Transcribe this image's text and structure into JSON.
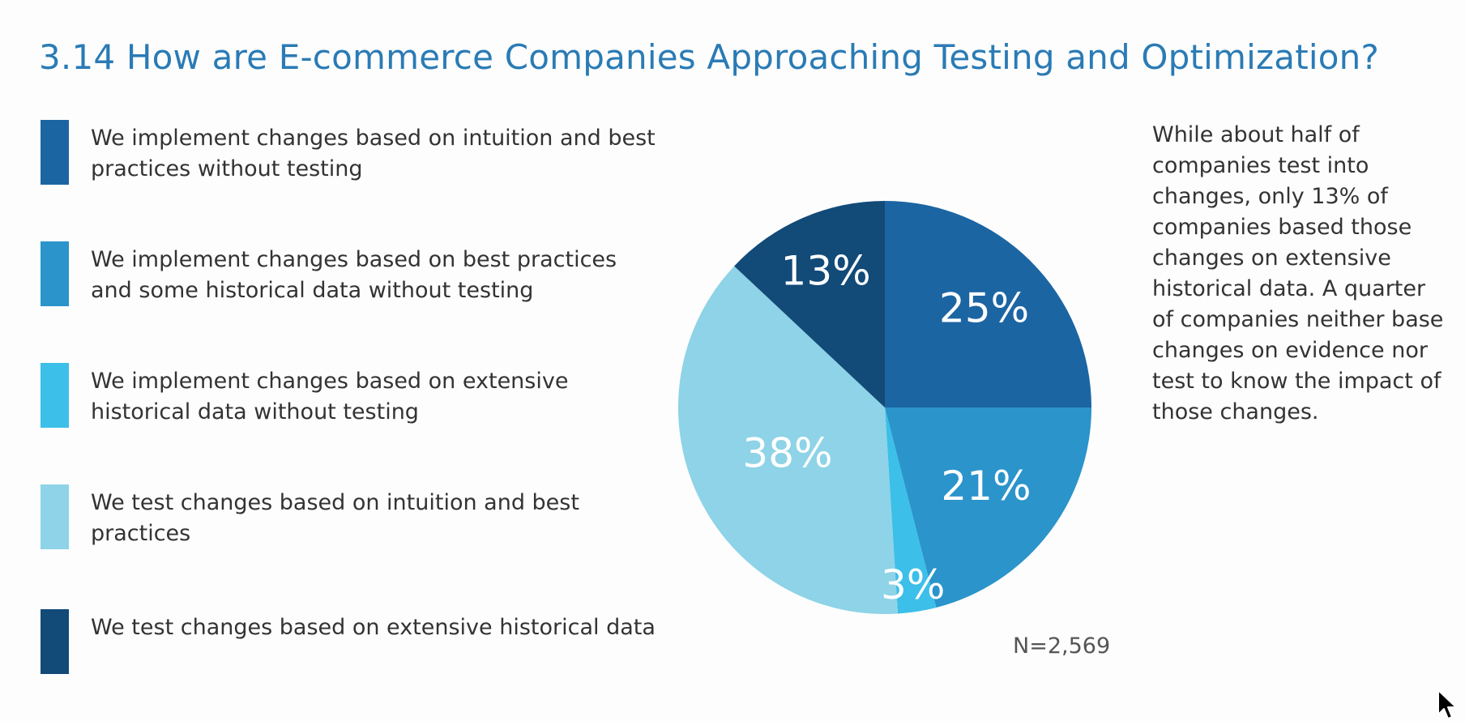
{
  "colors": {
    "title": "#2a7bb5",
    "text": "#333333"
  },
  "chart_data": {
    "type": "pie",
    "title": "3.14 How are E-commerce Companies Approaching Testing and Optimization?",
    "slices": [
      {
        "label": "We implement changes based on intuition and best practices without testing",
        "value": 25,
        "display": "25%",
        "color": "#1c65a3"
      },
      {
        "label": "We implement changes based on best practices and some historical data without testing",
        "value": 21,
        "display": "21%",
        "color": "#2a94cb"
      },
      {
        "label": "We implement changes based on extensive historical data without testing",
        "value": 3,
        "display": "3%",
        "color": "#3cbfe9"
      },
      {
        "label": "We test changes based on intuition and best practices",
        "value": 38,
        "display": "38%",
        "color": "#8ed3e7"
      },
      {
        "label": "We test changes based on extensive historical data",
        "value": 13,
        "display": "13%",
        "color": "#124a78"
      }
    ],
    "legend_position": "left",
    "sample_note": "N=2,569"
  },
  "note": "While about half of companies test into changes, only 13% of companies based those changes on extensive historical data. A quarter of companies neither base changes on evidence nor test to know the impact of those changes."
}
